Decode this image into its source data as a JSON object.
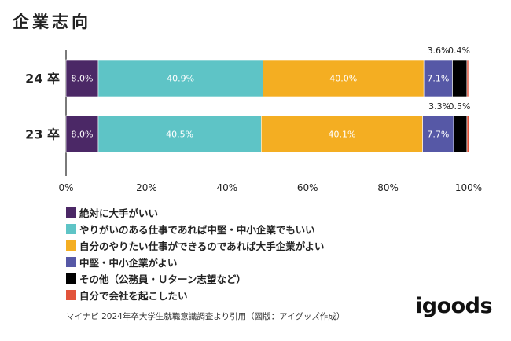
{
  "title": "企業志向",
  "chart_data": {
    "type": "bar",
    "orientation": "horizontal",
    "stacked": true,
    "categories": [
      "24卒",
      "23卒"
    ],
    "category_labels": [
      "24 卒",
      "23 卒"
    ],
    "series": [
      {
        "name": "絶対に大手がいい",
        "color": "#4b2866",
        "values": [
          8.0,
          8.0
        ],
        "labels": [
          "8.0%",
          "8.0%"
        ]
      },
      {
        "name": "やりがいのある仕事であれば中堅・中小企業でもいい",
        "color": "#5ec4c6",
        "values": [
          40.9,
          40.5
        ],
        "labels": [
          "40.9%",
          "40.5%"
        ]
      },
      {
        "name": "自分のやりたい仕事ができるのであれば大手企業がよい",
        "color": "#f4ae22",
        "values": [
          40.0,
          40.1
        ],
        "labels": [
          "40.0%",
          "40.1%"
        ]
      },
      {
        "name": "中堅・中小企業がよい",
        "color": "#5658a6",
        "values": [
          7.1,
          7.7
        ],
        "labels": [
          "7.1%",
          "7.7%"
        ]
      },
      {
        "name": "その他（公務員・Ｕターン志望など）",
        "color": "#000000",
        "values": [
          3.6,
          3.3
        ],
        "labels": [
          "3.6%",
          "3.3%"
        ]
      },
      {
        "name": "自分で会社を起こしたい",
        "color": "#e2543b",
        "values": [
          0.4,
          0.5
        ],
        "labels": [
          "0.4%",
          "0.5%"
        ]
      }
    ],
    "xlim": [
      0,
      100
    ],
    "xticks": [
      "0%",
      "20%",
      "40%",
      "60%",
      "80%",
      "100%"
    ],
    "outside_label_series": [
      4,
      5
    ],
    "grid": false,
    "legend": "bottom-left"
  },
  "source": "マイナビ 2024年卒大学生就職意識調査より引用（図版：アイグッズ作成）",
  "brand": "igoods"
}
